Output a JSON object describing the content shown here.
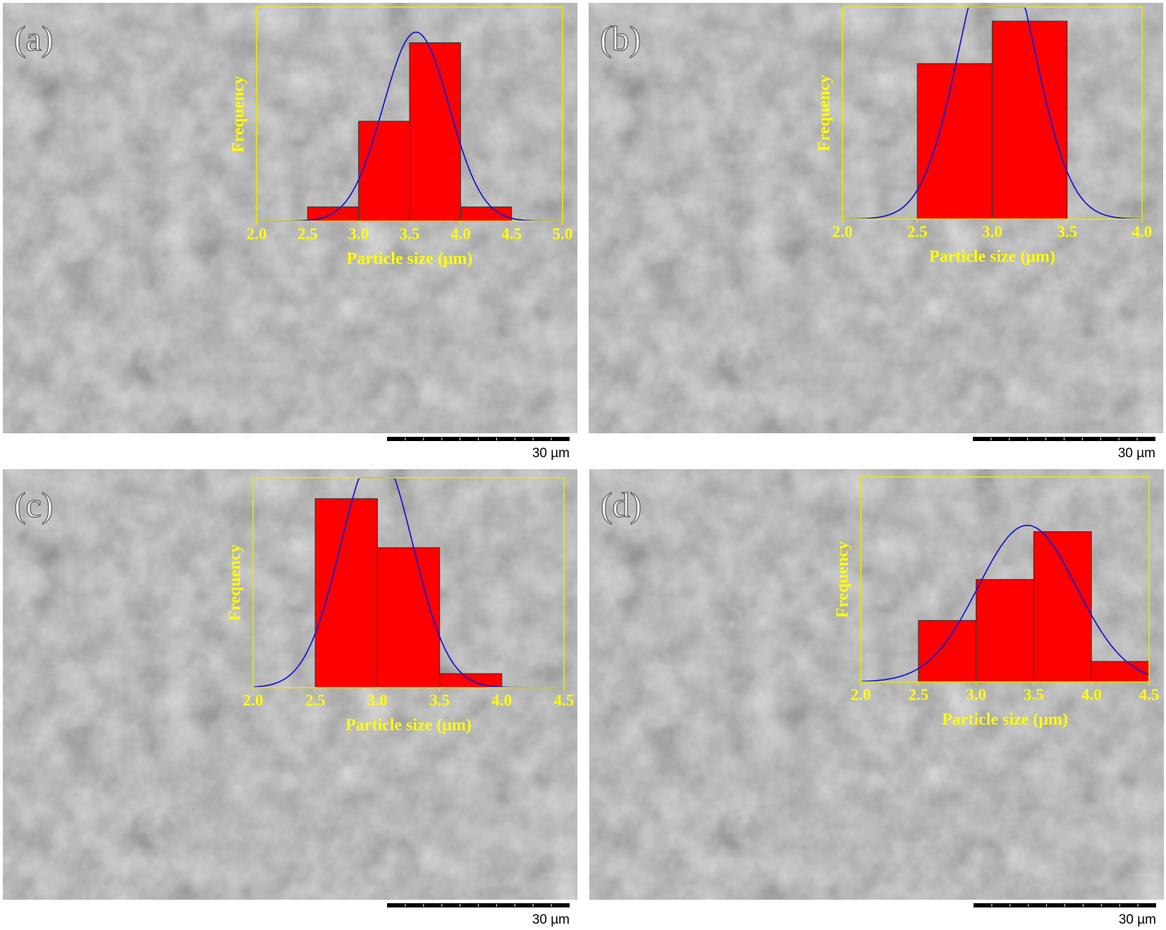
{
  "chart_data": [
    {
      "type": "histogram",
      "panel_label": "(a)",
      "xlabel": "Particle size (μm)",
      "ylabel": "Frequency",
      "bins": [
        2.5,
        3.0,
        3.5,
        4.0,
        4.5
      ],
      "values": [
        2,
        14,
        25,
        2
      ],
      "xlim": [
        2.0,
        5.0
      ],
      "xticks": [
        {
          "value": 2,
          "label": "2.0"
        },
        2.5,
        {
          "value": 3,
          "label": "3.0"
        },
        3.5,
        {
          "value": 4,
          "label": "4.0"
        },
        4.5,
        {
          "value": 5,
          "label": "5.0"
        }
      ],
      "ylim": [
        0,
        30
      ],
      "color": "#ff0000",
      "curve_color": "#1a1acc",
      "frame_color": "#e8e800",
      "scale_bar_label": "30 µm"
    },
    {
      "type": "histogram",
      "panel_label": "(b)",
      "xlabel": "Particle size (μm)",
      "ylabel": "Frequency",
      "bins": [
        2.5,
        3.0,
        3.5
      ],
      "values": [
        22,
        28
      ],
      "xlim": [
        2.0,
        4.0
      ],
      "xticks": [
        {
          "value": 2,
          "label": "2.0"
        },
        2.5,
        {
          "value": 3,
          "label": "3.0"
        },
        3.5,
        {
          "value": 4,
          "label": "4.0"
        }
      ],
      "ylim": [
        0,
        30
      ],
      "color": "#ff0000",
      "curve_color": "#1a1acc",
      "frame_color": "#e8e800",
      "scale_bar_label": "30 µm"
    },
    {
      "type": "histogram",
      "panel_label": "(c)",
      "xlabel": "Particle size (μm)",
      "ylabel": "Frequency",
      "bins": [
        2.5,
        3.0,
        3.5,
        4.0
      ],
      "values": [
        27,
        20,
        2
      ],
      "xlim": [
        2.0,
        4.5
      ],
      "xticks": [
        {
          "value": 2,
          "label": "2.0"
        },
        2.5,
        {
          "value": 3,
          "label": "3.0"
        },
        3.5,
        {
          "value": 4,
          "label": "4.0"
        },
        4.5
      ],
      "ylim": [
        0,
        30
      ],
      "color": "#ff0000",
      "curve_color": "#1a1acc",
      "frame_color": "#e8e800",
      "scale_bar_label": "30 µm"
    },
    {
      "type": "histogram",
      "panel_label": "(d)",
      "xlabel": "Particle size (μm)",
      "ylabel": "Frequency",
      "bins": [
        2.5,
        3.0,
        3.5,
        4.0,
        4.5
      ],
      "values": [
        9,
        15,
        22,
        3
      ],
      "xlim": [
        2.0,
        4.5
      ],
      "xticks": [
        {
          "value": 2,
          "label": "2.0"
        },
        2.5,
        {
          "value": 3,
          "label": "3.0"
        },
        3.5,
        {
          "value": 4,
          "label": "4.0"
        },
        4.5
      ],
      "ylim": [
        0,
        30
      ],
      "color": "#ff0000",
      "curve_color": "#1a1acc",
      "frame_color": "#e8e800",
      "scale_bar_label": "30 µm"
    }
  ]
}
